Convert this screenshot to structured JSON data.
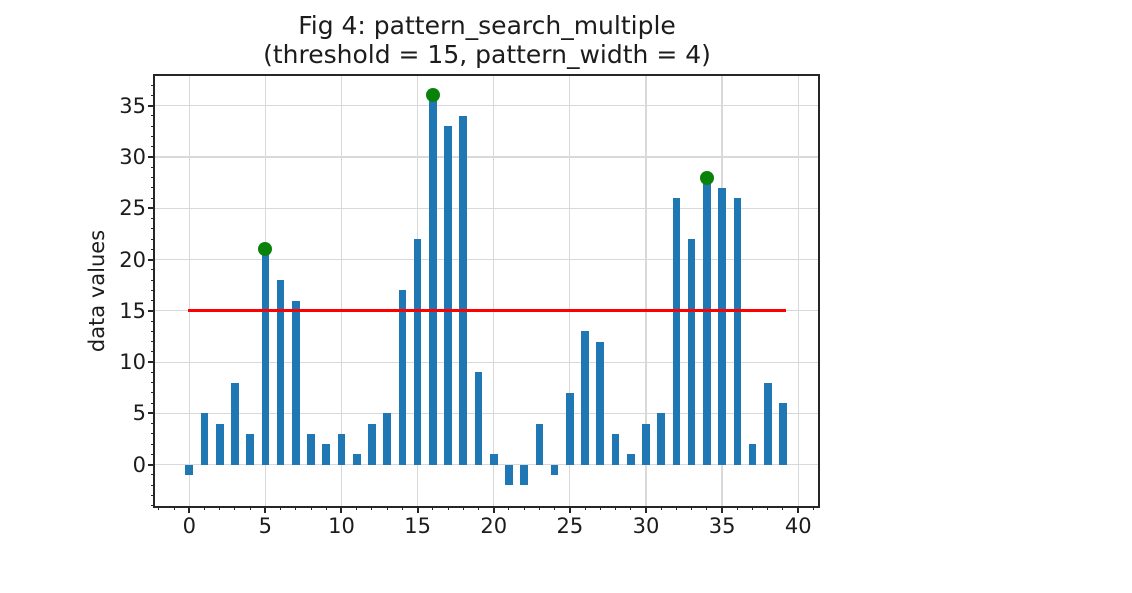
{
  "chart_data": {
    "type": "bar",
    "title_line1": "Fig 4: pattern_search_multiple",
    "title_line2": "(threshold = 15, pattern_width = 4)",
    "ylabel": "data values",
    "xlabel": "",
    "x": [
      0,
      1,
      2,
      3,
      4,
      5,
      6,
      7,
      8,
      9,
      10,
      11,
      12,
      13,
      14,
      15,
      16,
      17,
      18,
      19,
      20,
      21,
      22,
      23,
      24,
      25,
      26,
      27,
      28,
      29,
      30,
      31,
      32,
      33,
      34,
      35,
      36,
      37,
      38,
      39
    ],
    "values": [
      -1,
      5,
      4,
      8,
      3,
      21,
      18,
      16,
      3,
      2,
      3,
      1,
      4,
      5,
      17,
      22,
      36,
      33,
      34,
      9,
      1,
      -2,
      -2,
      4,
      -1,
      7,
      13,
      12,
      3,
      1,
      4,
      5,
      26,
      22,
      28,
      27,
      26,
      2,
      8,
      6
    ],
    "bar_color": "#1f77b4",
    "bar_width_units": 0.5,
    "threshold": {
      "y": 15,
      "x_start": -0.1,
      "x_end": 39.2,
      "color": "#ff0000",
      "linewidth": 3
    },
    "peaks": [
      {
        "x": 5,
        "y": 21
      },
      {
        "x": 16,
        "y": 36
      },
      {
        "x": 34,
        "y": 28
      }
    ],
    "peak_color": "#0a820a",
    "peak_diameter": 14,
    "xlim": [
      -2.25,
      41.3
    ],
    "ylim": [
      -4.03,
      37.9
    ],
    "xticks": [
      0,
      5,
      10,
      15,
      20,
      25,
      30,
      35,
      40
    ],
    "yticks": [
      0,
      5,
      10,
      15,
      20,
      25,
      30,
      35
    ],
    "minor_tick_step": 1,
    "grid": true,
    "grid_color": "#d9d9d9",
    "axes_color": "#262626",
    "text_color": "#1c1c1c",
    "legend": null
  }
}
